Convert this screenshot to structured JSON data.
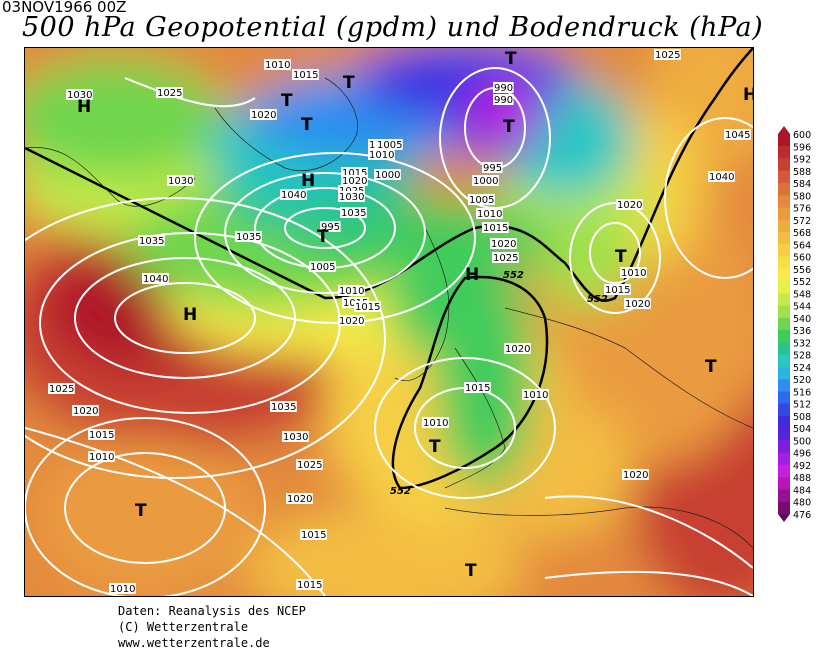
{
  "header": {
    "date": "03NOV1966 00Z",
    "title": "500 hPa Geopotential (gpdm) und Bodendruck (hPa)"
  },
  "footer": {
    "line1": "Daten: Reanalysis des NCEP",
    "line2": "(C) Wetterzentrale",
    "line3": "www.wetterzentrale.de"
  },
  "colorbar": {
    "levels": [
      600,
      596,
      592,
      588,
      584,
      580,
      576,
      572,
      568,
      564,
      560,
      556,
      552,
      548,
      544,
      540,
      536,
      532,
      528,
      524,
      520,
      516,
      512,
      508,
      504,
      500,
      496,
      492,
      488,
      484,
      480,
      476
    ],
    "colors": [
      "#b0142a",
      "#bd2a2f",
      "#c83f32",
      "#d25a37",
      "#db733a",
      "#e3893d",
      "#ea9b3f",
      "#efac41",
      "#f3bd43",
      "#f6cf45",
      "#f8df47",
      "#f5ec49",
      "#e6f04a",
      "#c5ea4a",
      "#a0e04c",
      "#6fd64e",
      "#3fcc5c",
      "#27c490",
      "#28c7c4",
      "#2ab5e6",
      "#2c8ff0",
      "#2f69ee",
      "#3346e8",
      "#3e2be2",
      "#5722de",
      "#7e1ee0",
      "#a61ee2",
      "#c91ee0",
      "#b716b4",
      "#961192",
      "#740c74",
      "#5a0a5a"
    ]
  },
  "pressure_labels": [
    {
      "text": "1030"
    },
    {
      "text": "1025"
    },
    {
      "text": "1030"
    },
    {
      "text": "1035"
    },
    {
      "text": "1040"
    },
    {
      "text": "1025"
    },
    {
      "text": "1020"
    },
    {
      "text": "1015"
    },
    {
      "text": "1010"
    },
    {
      "text": "1010"
    },
    {
      "text": "1035"
    },
    {
      "text": "1030"
    },
    {
      "text": "1025"
    },
    {
      "text": "1020"
    },
    {
      "text": "1015"
    },
    {
      "text": "1015"
    },
    {
      "text": "1010"
    },
    {
      "text": "1015"
    },
    {
      "text": "1015"
    },
    {
      "text": "1010"
    },
    {
      "text": "1015"
    },
    {
      "text": "1020"
    },
    {
      "text": "1025"
    },
    {
      "text": "1030"
    },
    {
      "text": "1035"
    },
    {
      "text": "1040"
    },
    {
      "text": "1035"
    },
    {
      "text": "995"
    },
    {
      "text": "1005"
    },
    {
      "text": "1000"
    },
    {
      "text": "1005"
    },
    {
      "text": "990"
    },
    {
      "text": "990"
    },
    {
      "text": "995"
    },
    {
      "text": "1000"
    },
    {
      "text": "1005"
    },
    {
      "text": "1010"
    },
    {
      "text": "1015"
    },
    {
      "text": "1020"
    },
    {
      "text": "1025"
    },
    {
      "text": "1020"
    },
    {
      "text": "1020"
    },
    {
      "text": "1015"
    },
    {
      "text": "1010"
    },
    {
      "text": "1020"
    },
    {
      "text": "1015"
    },
    {
      "text": "1010"
    },
    {
      "text": "1020"
    },
    {
      "text": "1025"
    },
    {
      "text": "1045"
    },
    {
      "text": "1040"
    },
    {
      "text": "1020"
    },
    {
      "text": "1015"
    },
    {
      "text": "1010"
    },
    {
      "text": "1020"
    },
    {
      "text": "1015"
    },
    {
      "text": "1010"
    }
  ],
  "contour_labels": [
    {
      "text": "552"
    },
    {
      "text": "552"
    },
    {
      "text": "552"
    }
  ],
  "centers": [
    {
      "text": "H"
    },
    {
      "text": "H"
    },
    {
      "text": "T"
    },
    {
      "text": "T"
    },
    {
      "text": "T"
    },
    {
      "text": "H"
    },
    {
      "text": "T"
    },
    {
      "text": "T"
    },
    {
      "text": "H"
    },
    {
      "text": "T"
    },
    {
      "text": "H"
    },
    {
      "text": "T"
    },
    {
      "text": "T"
    },
    {
      "text": "T"
    },
    {
      "text": "T"
    },
    {
      "text": "T"
    }
  ]
}
